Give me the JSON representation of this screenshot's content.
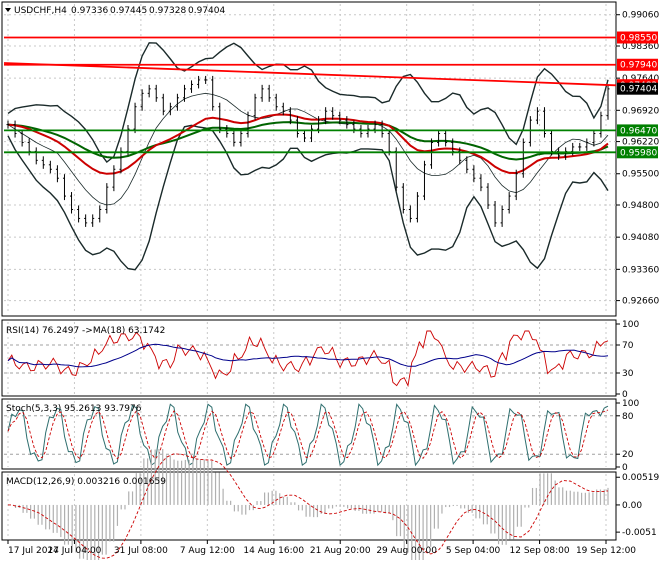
{
  "chart_data": [
    {
      "type": "line",
      "panel": "main",
      "symbol": "USDCHF,H4",
      "ohlc": {
        "open": "0.97336",
        "high": "0.97445",
        "low": "0.97328",
        "close": "0.97404"
      },
      "y_ticks": [
        "0.99060",
        "0.98360",
        "0.97640",
        "0.96920",
        "0.96220",
        "0.95500",
        "0.94800",
        "0.94080",
        "0.93360",
        "0.92660"
      ],
      "ylim": [
        0.9236,
        0.993
      ],
      "price_tags": [
        {
          "value": "0.98550",
          "color": "#ff0000"
        },
        {
          "value": "0.97940",
          "color": "#ff0000"
        },
        {
          "value": "0.97482",
          "color": "#ff0000"
        },
        {
          "value": "0.97404",
          "color": "#000000"
        },
        {
          "value": "0.96470",
          "color": "#008000"
        },
        {
          "value": "0.95980",
          "color": "#008000"
        }
      ],
      "horizontal_lines": [
        {
          "y": 0.9855,
          "color": "#ff0000"
        },
        {
          "y": 0.9794,
          "color": "#ff0000"
        },
        {
          "y": 0.9647,
          "color": "#008000"
        },
        {
          "y": 0.9598,
          "color": "#008000"
        }
      ],
      "trend_line": {
        "y_start": 0.9798,
        "y_end": 0.9748,
        "color": "#ff0000"
      },
      "x_ticks": [
        "17 Jul 2017",
        "24 Jul 04:00",
        "31 Jul 08:00",
        "7 Aug 12:00",
        "14 Aug 16:00",
        "21 Aug 20:00",
        "29 Aug 00:00",
        "5 Sep 04:00",
        "12 Sep 08:00",
        "19 Sep 12:00"
      ],
      "close_series": [
        0.966,
        0.964,
        0.962,
        0.96,
        0.958,
        0.957,
        0.956,
        0.954,
        0.95,
        0.947,
        0.945,
        0.944,
        0.945,
        0.947,
        0.952,
        0.956,
        0.96,
        0.965,
        0.97,
        0.973,
        0.974,
        0.972,
        0.969,
        0.97,
        0.972,
        0.974,
        0.975,
        0.976,
        0.976,
        0.97,
        0.965,
        0.964,
        0.962,
        0.964,
        0.968,
        0.972,
        0.974,
        0.972,
        0.97,
        0.969,
        0.967,
        0.964,
        0.963,
        0.965,
        0.967,
        0.969,
        0.968,
        0.967,
        0.966,
        0.965,
        0.964,
        0.965,
        0.966,
        0.964,
        0.96,
        0.952,
        0.947,
        0.945,
        0.95,
        0.957,
        0.962,
        0.964,
        0.962,
        0.96,
        0.958,
        0.956,
        0.954,
        0.952,
        0.948,
        0.944,
        0.947,
        0.95,
        0.955,
        0.962,
        0.967,
        0.969,
        0.964,
        0.96,
        0.959,
        0.96,
        0.961,
        0.961,
        0.962,
        0.964,
        0.968,
        0.974
      ]
    },
    {
      "type": "line",
      "panel": "rsi",
      "label": "RSI(14) 76.2497  ->MA(18) 63.1742",
      "y_ticks": [
        "100",
        "70",
        "30",
        "0"
      ],
      "ylim": [
        0,
        100
      ],
      "levels": [
        30,
        70
      ]
    },
    {
      "type": "line",
      "panel": "stochastic",
      "label": "Stoch(5,3,3) 95.2613 93.7976",
      "y_ticks": [
        "100",
        "80",
        "20",
        "0"
      ],
      "ylim": [
        0,
        100
      ],
      "levels": [
        20,
        80
      ]
    },
    {
      "type": "bar",
      "panel": "macd",
      "label": "MACD(12,26,9) 0.003216 0.001659",
      "y_ticks": [
        "0.005193",
        "0.00",
        "-0.0051"
      ],
      "ylim": [
        -0.0062,
        0.0058
      ]
    }
  ],
  "colors": {
    "resistance": "#ff0000",
    "support": "#008000",
    "bollinger": "#1a2a2a",
    "ma_slow": "#cc0000",
    "ma_green": "#006400",
    "rsi": "#cc0000",
    "rsi_ma": "#00008b",
    "stoch_main": "#2f6f6f",
    "stoch_signal": "#cc0000",
    "macd_hist": "#b0b0b0",
    "macd_signal": "#cc0000"
  }
}
